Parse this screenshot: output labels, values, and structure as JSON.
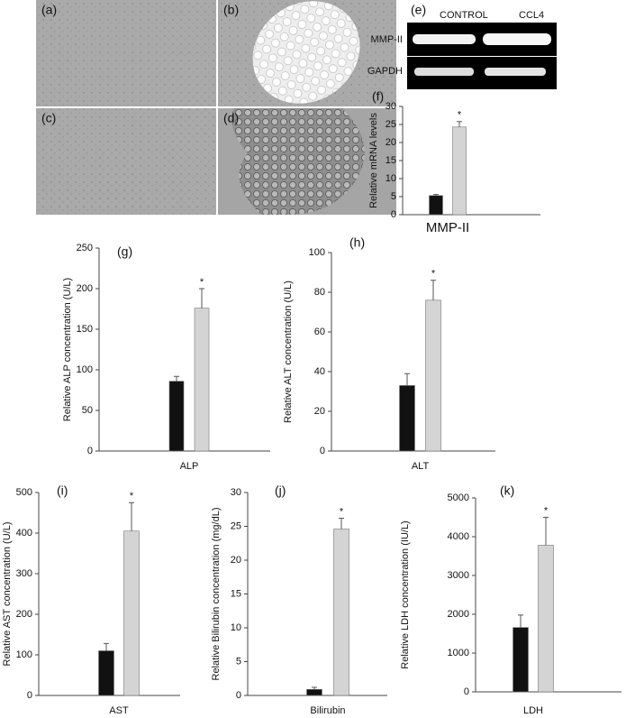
{
  "images": {
    "labels": [
      "(a)",
      "(b)",
      "(c)",
      "(d)"
    ]
  },
  "gel": {
    "label": "(e)",
    "columns": [
      "CONTROL",
      "CCL4"
    ],
    "rows": [
      "MMP-II",
      "GAPDH"
    ]
  },
  "chart_data": [
    {
      "type": "bar",
      "panel": "(f)",
      "ylabel": "Relative mRNA levels",
      "categories": [
        "MMP-II"
      ],
      "series": [
        {
          "color": "#111111",
          "values": [
            5.3
          ],
          "errors": [
            0.3
          ]
        },
        {
          "color": "#d4d4d4",
          "values": [
            24.3
          ],
          "errors": [
            1.5
          ]
        }
      ],
      "significance": "*",
      "ylim": [
        0,
        30
      ],
      "yticks": [
        0,
        5,
        10,
        15,
        20,
        25,
        30
      ]
    },
    {
      "type": "bar",
      "panel": "(g)",
      "ylabel": "Relative ALP concentration (U/L)",
      "categories": [
        "ALP"
      ],
      "series": [
        {
          "color": "#111111",
          "values": [
            86
          ],
          "errors": [
            6
          ]
        },
        {
          "color": "#d4d4d4",
          "values": [
            176
          ],
          "errors": [
            24
          ]
        }
      ],
      "significance": "*",
      "ylim": [
        0,
        250
      ],
      "yticks": [
        0,
        50,
        100,
        150,
        200,
        250
      ]
    },
    {
      "type": "bar",
      "panel": "(h)",
      "ylabel": "Relative ALT concentration (U/L)",
      "categories": [
        "ALT"
      ],
      "series": [
        {
          "color": "#111111",
          "values": [
            33
          ],
          "errors": [
            6
          ]
        },
        {
          "color": "#d4d4d4",
          "values": [
            76
          ],
          "errors": [
            10
          ]
        }
      ],
      "significance": "*",
      "ylim": [
        0,
        100
      ],
      "yticks": [
        0,
        20,
        40,
        60,
        80,
        100
      ]
    },
    {
      "type": "bar",
      "panel": "(i)",
      "ylabel": "Relative AST concentration (U/L)",
      "categories": [
        "AST"
      ],
      "series": [
        {
          "color": "#111111",
          "values": [
            110
          ],
          "errors": [
            18
          ]
        },
        {
          "color": "#d4d4d4",
          "values": [
            405
          ],
          "errors": [
            70
          ]
        }
      ],
      "significance": "*",
      "ylim": [
        0,
        500
      ],
      "yticks": [
        0,
        100,
        200,
        300,
        400,
        500
      ]
    },
    {
      "type": "bar",
      "panel": "(j)",
      "ylabel": "Relative Bilirubin concentration (mg/dL)",
      "categories": [
        "Bilirubin"
      ],
      "series": [
        {
          "color": "#111111",
          "values": [
            0.9
          ],
          "errors": [
            0.3
          ]
        },
        {
          "color": "#d4d4d4",
          "values": [
            24.6
          ],
          "errors": [
            1.6
          ]
        }
      ],
      "significance": "*",
      "ylim": [
        0,
        30
      ],
      "yticks": [
        0,
        5,
        10,
        15,
        20,
        25,
        30
      ]
    },
    {
      "type": "bar",
      "panel": "(k)",
      "ylabel": "Relative LDH concentration (IU/L)",
      "categories": [
        "LDH"
      ],
      "series": [
        {
          "color": "#111111",
          "values": [
            1660
          ],
          "errors": [
            320
          ]
        },
        {
          "color": "#d4d4d4",
          "values": [
            3780
          ],
          "errors": [
            720
          ]
        }
      ],
      "significance": "*",
      "ylim": [
        0,
        5000
      ],
      "yticks": [
        0,
        1000,
        2000,
        3000,
        4000,
        5000
      ]
    }
  ]
}
